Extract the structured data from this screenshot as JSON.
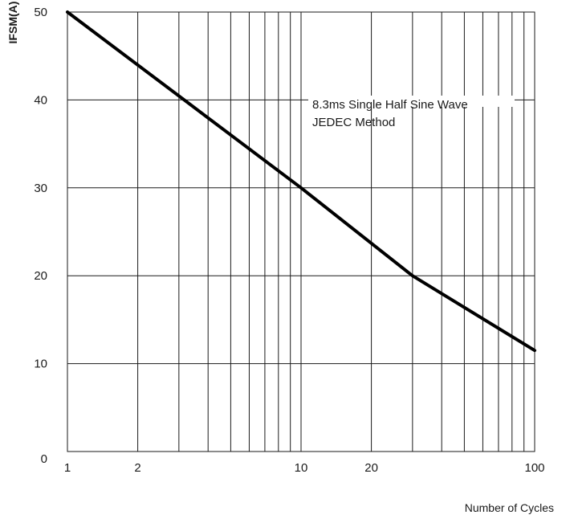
{
  "chart_data": {
    "type": "line",
    "xscale": "log",
    "xlim": [
      1,
      100
    ],
    "ylim": [
      0,
      50
    ],
    "x_ticks": [
      1,
      2,
      10,
      20,
      100
    ],
    "x_tick_labels": [
      "1",
      "2",
      "10",
      "20",
      "100"
    ],
    "y_ticks": [
      0,
      10,
      20,
      30,
      40,
      50
    ],
    "y_tick_labels": [
      "0",
      "10",
      "20",
      "30",
      "40",
      "50"
    ],
    "xlabel": "Number of Cycles",
    "ylabel": "IFSM(A)",
    "grid": true,
    "legend": "none",
    "annotation": [
      "8.3ms Single Half Sine Wave",
      "JEDEC Method"
    ],
    "series": [
      {
        "x": [
          1,
          10,
          30,
          100
        ],
        "y": [
          50,
          30,
          20,
          11.5
        ]
      }
    ],
    "colors": {
      "line": "#000000",
      "grid": "#1a1a1a"
    }
  }
}
